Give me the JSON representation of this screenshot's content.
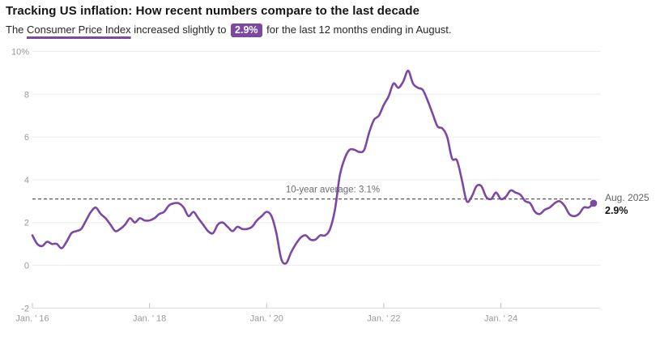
{
  "header": {
    "title": "Tracking US inflation: How recent numbers compare to the last decade",
    "subtitle": {
      "prefix": "The ",
      "link_text": "Consumer Price Index",
      "middle": " increased slightly to ",
      "badge": "2.9%",
      "suffix": " for the last 12 months ending in August."
    }
  },
  "colors": {
    "accent_purple": "#7b48a4",
    "badge_text": "#ffffff",
    "grid_line": "#ececec",
    "axis_line": "#d9d9d9",
    "axis_tick": "#c0c0c0",
    "axis_label": "#97999c",
    "dashed_line": "#58595b",
    "average_label": "#6b6d70",
    "annotation_muted": "#606266",
    "annotation_value": "#131313"
  },
  "chart_data": {
    "type": "line",
    "title": "Tracking US inflation: How recent numbers compare to the last decade",
    "subtitle": "The Consumer Price Index increased slightly to 2.9% for the last 12 months ending in August.",
    "x_unit": "month",
    "x_range": [
      "Jan 2016",
      "Aug 2025"
    ],
    "ylim": [
      -2,
      10
    ],
    "grid": "horizontal",
    "legend": "none",
    "series": [
      {
        "name": "CPI 12-month percent change",
        "color": "#7b48a4",
        "values": [
          1.4,
          1.0,
          0.9,
          1.1,
          1.0,
          1.0,
          0.8,
          1.1,
          1.5,
          1.6,
          1.7,
          2.1,
          2.5,
          2.7,
          2.4,
          2.2,
          1.9,
          1.6,
          1.7,
          1.9,
          2.2,
          2.0,
          2.2,
          2.1,
          2.1,
          2.2,
          2.4,
          2.5,
          2.8,
          2.9,
          2.9,
          2.7,
          2.3,
          2.5,
          2.2,
          1.9,
          1.6,
          1.5,
          1.9,
          2.0,
          1.8,
          1.6,
          1.8,
          1.7,
          1.7,
          1.8,
          2.1,
          2.3,
          2.5,
          2.3,
          1.5,
          0.3,
          0.1,
          0.6,
          1.0,
          1.3,
          1.4,
          1.2,
          1.2,
          1.4,
          1.4,
          1.7,
          2.6,
          4.2,
          5.0,
          5.4,
          5.4,
          5.3,
          5.4,
          6.2,
          6.8,
          7.0,
          7.5,
          7.9,
          8.5,
          8.3,
          8.6,
          9.1,
          8.5,
          8.3,
          8.2,
          7.7,
          7.1,
          6.5,
          6.4,
          6.0,
          5.0,
          4.9,
          4.0,
          3.0,
          3.2,
          3.7,
          3.7,
          3.2,
          3.1,
          3.4,
          3.1,
          3.2,
          3.5,
          3.4,
          3.3,
          3.0,
          2.9,
          2.5,
          2.4,
          2.6,
          2.7,
          2.9,
          3.0,
          2.8,
          2.4,
          2.3,
          2.4,
          2.7,
          2.7,
          2.9
        ]
      }
    ],
    "x_ticks": [
      {
        "label": "Jan. ' 16",
        "month_index": 0
      },
      {
        "label": "Jan. ' 18",
        "month_index": 24
      },
      {
        "label": "Jan. ' 20",
        "month_index": 48
      },
      {
        "label": "Jan. ' 22",
        "month_index": 72
      },
      {
        "label": "Jan. ' 24",
        "month_index": 96
      }
    ],
    "y_ticks": [
      {
        "label": "10%",
        "value": 10
      },
      {
        "label": "8",
        "value": 8
      },
      {
        "label": "6",
        "value": 6
      },
      {
        "label": "4",
        "value": 4
      },
      {
        "label": "2",
        "value": 2
      },
      {
        "label": "0",
        "value": 0
      },
      {
        "label": "-2",
        "value": -2
      }
    ],
    "average_line": {
      "value": 3.1,
      "label": "10-year average: 3.1%"
    },
    "end_point": {
      "value": 2.9,
      "label_line1": "Aug. 2025",
      "label_line2": "2.9%"
    }
  }
}
